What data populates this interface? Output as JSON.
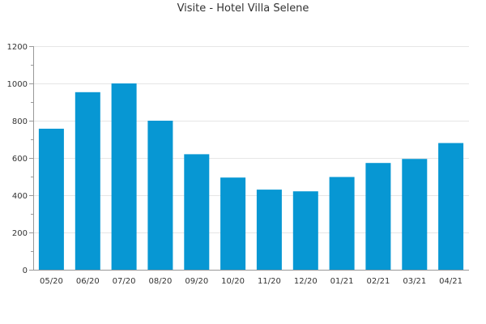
{
  "chart_data": {
    "type": "bar",
    "title": "Visite - Hotel Villa Selene",
    "xlabel": "",
    "ylabel": "",
    "categories": [
      "05/20",
      "06/20",
      "07/20",
      "08/20",
      "09/20",
      "10/20",
      "11/20",
      "12/20",
      "01/21",
      "02/21",
      "03/21",
      "04/21"
    ],
    "values": [
      757,
      953,
      1000,
      800,
      620,
      495,
      430,
      421,
      498,
      573,
      595,
      680
    ],
    "ylim": [
      0,
      1200
    ],
    "yticks": [
      0,
      200,
      400,
      600,
      800,
      1000,
      1200
    ],
    "grid": true,
    "legend": "none",
    "colors": {
      "bar": "#0797d3",
      "grid": "#e6e6e6",
      "axis": "#999999"
    }
  }
}
